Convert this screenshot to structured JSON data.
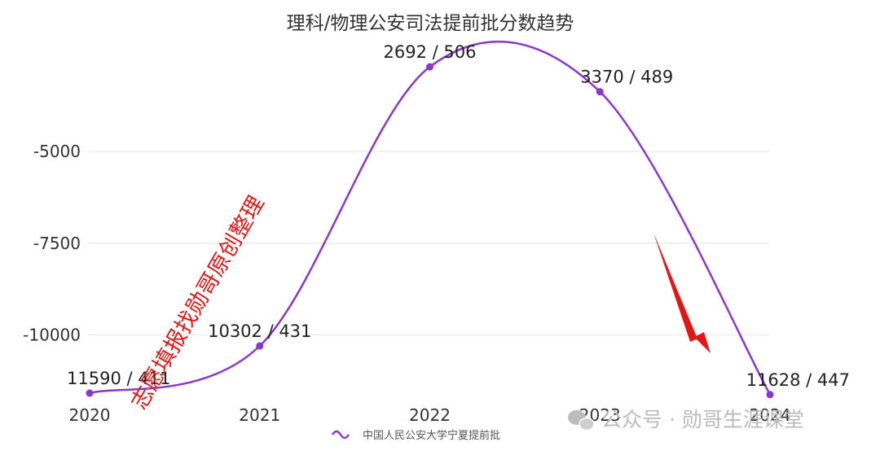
{
  "chart_data": {
    "type": "line",
    "title": "理科/物理公安司法提前批分数趋势",
    "categories": [
      "2020",
      "2021",
      "2022",
      "2023",
      "2024"
    ],
    "series": [
      {
        "name": "中国人民公安大学宁夏提前批",
        "color": "#8a38cc",
        "values": [
          -11590,
          -10302,
          -2692,
          -3370,
          -11628
        ],
        "labels": [
          "11590 / 411",
          "10302 / 431",
          "2692 / 506",
          "3370 / 489",
          "11628 / 447"
        ]
      }
    ],
    "yticks": [
      "-5000",
      "-7500",
      "-10000"
    ],
    "ylim": [
      -11700,
      -2200
    ],
    "smooth": true,
    "grid": true,
    "legend": "bottom-center"
  },
  "overlays": {
    "diagonal_text": "志愿填报找勋哥原创整理",
    "watermark": "公众号 · 勋哥生涯课堂",
    "arrow_color": "#e01818"
  }
}
